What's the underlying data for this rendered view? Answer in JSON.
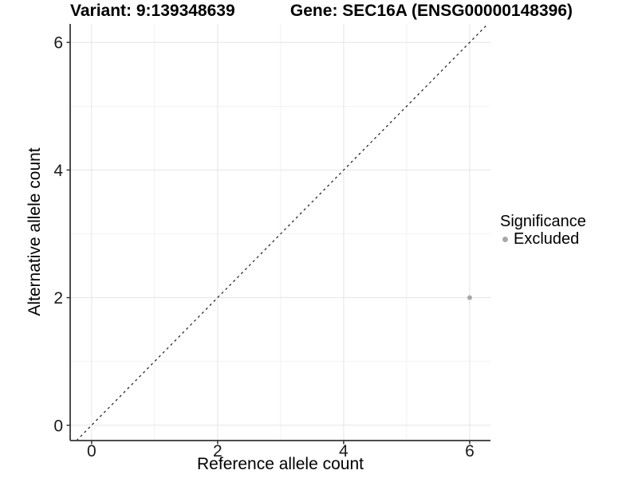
{
  "chart_data": {
    "type": "scatter",
    "title_left": "Variant: 9:139348639",
    "title_right": "Gene: SEC16A (ENSG00000148396)",
    "xlabel": "Reference allele count",
    "ylabel": "Alternative allele count",
    "xlim": [
      -0.34,
      6.33
    ],
    "ylim": [
      -0.24,
      6.29
    ],
    "x_ticks": [
      0,
      2,
      4,
      6
    ],
    "y_ticks": [
      0,
      2,
      4,
      6
    ],
    "x_minor_ticks": [
      1,
      3,
      5
    ],
    "y_minor_ticks": [
      1,
      3,
      5
    ],
    "grid": true,
    "identity_line": {
      "equation": "y = x",
      "style": "dashed",
      "color": "#1a1a1a"
    },
    "series": [
      {
        "name": "Excluded",
        "color": "#a9a9a9",
        "points": [
          {
            "x": 6,
            "y": 2
          }
        ]
      }
    ],
    "legend": {
      "title": "Significance",
      "position": "right",
      "items": [
        {
          "label": "Excluded",
          "color": "#a9a9a9"
        }
      ]
    }
  }
}
